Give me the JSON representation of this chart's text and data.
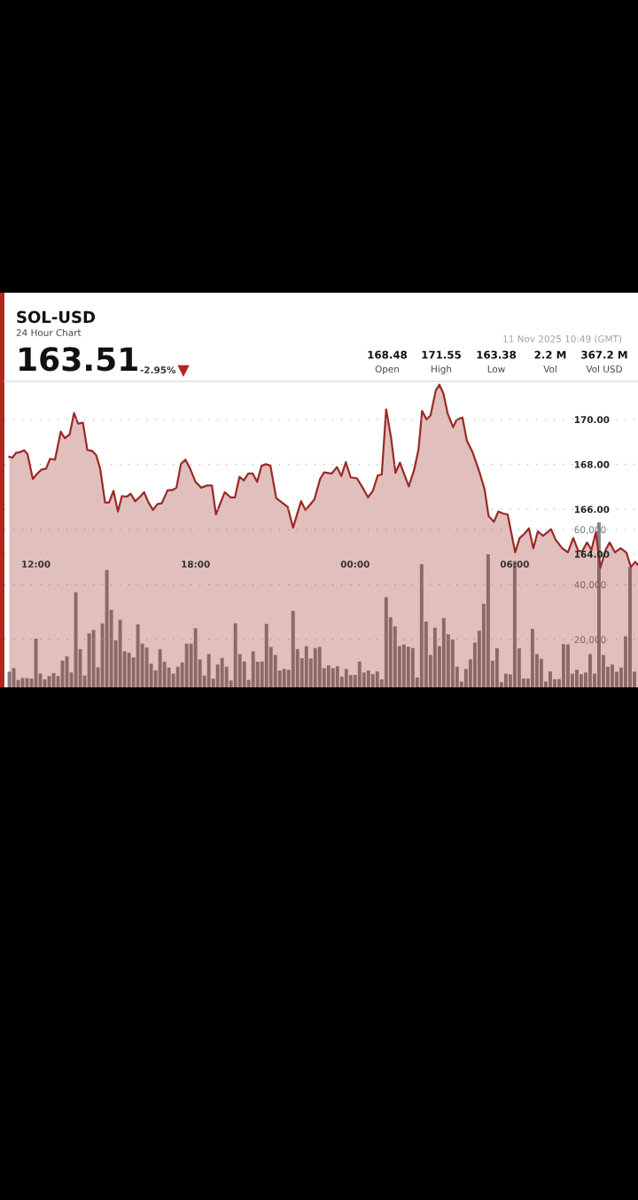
{
  "chart_data": {
    "type": "area",
    "title": "SOL-USD",
    "subtitle": "24 Hour Chart",
    "annotations": [
      "163.51",
      "-2.95%",
      "168.48",
      "Open",
      "171.55",
      "High",
      "163.38",
      "Low",
      "2.2 M",
      "Vol",
      "367.2 M",
      "Vol USD",
      "11 Nov 2025 10:49 (GMT)"
    ],
    "xlim": [
      "2025-11-10T10:49",
      "2025-11-11T10:38"
    ],
    "xticks": [
      {
        "value": "2025-11-10T12:00",
        "label": "12:00"
      },
      {
        "value": "2025-11-10T18:00",
        "label": "18:00"
      },
      {
        "value": "2025-11-11T00:00",
        "label": "00:00"
      },
      {
        "value": "2025-11-11T06:00",
        "label": "06:00"
      }
    ],
    "ylim": [
      158.06,
      171.7
    ],
    "yticks": [
      {
        "value": 164,
        "label": "164.00"
      },
      {
        "value": 166,
        "label": "166.00"
      },
      {
        "value": 168,
        "label": "168.00"
      },
      {
        "value": 170,
        "label": "170.00"
      }
    ],
    "y2lim": [
      2600,
      113900
    ],
    "y2ticks": [
      {
        "value": 20000,
        "label": "20,000"
      },
      {
        "value": 40000,
        "label": "40,000"
      },
      {
        "value": 60000,
        "label": "60,000"
      }
    ],
    "grid": "y",
    "series": [
      {
        "color": "#9b2a26",
        "x": [
          "2025-11-10T11:00",
          "2025-11-10T11:07",
          "2025-11-10T11:15",
          "2025-11-10T11:23",
          "2025-11-10T11:33",
          "2025-11-10T11:41",
          "2025-11-10T11:53",
          "2025-11-10T12:03",
          "2025-11-10T12:13",
          "2025-11-10T12:23",
          "2025-11-10T12:32",
          "2025-11-10T12:43",
          "2025-11-10T12:56",
          "2025-11-10T13:05",
          "2025-11-10T13:16",
          "2025-11-10T13:26",
          "2025-11-10T13:35",
          "2025-11-10T13:46",
          "2025-11-10T13:56",
          "2025-11-10T14:07",
          "2025-11-10T14:16",
          "2025-11-10T14:25",
          "2025-11-10T14:36",
          "2025-11-10T14:45",
          "2025-11-10T14:55",
          "2025-11-10T15:05",
          "2025-11-10T15:14",
          "2025-11-10T15:25",
          "2025-11-10T15:34",
          "2025-11-10T15:44",
          "2025-11-10T15:55",
          "2025-11-10T16:04",
          "2025-11-10T16:14",
          "2025-11-10T16:24",
          "2025-11-10T16:34",
          "2025-11-10T16:44",
          "2025-11-10T16:57",
          "2025-11-10T17:07",
          "2025-11-10T17:17",
          "2025-11-10T17:27",
          "2025-11-10T17:37",
          "2025-11-10T17:47",
          "2025-11-10T18:00",
          "2025-11-10T18:13",
          "2025-11-10T18:26",
          "2025-11-10T18:37",
          "2025-11-10T18:46",
          "2025-11-10T19:06",
          "2025-11-10T19:19",
          "2025-11-10T19:29",
          "2025-11-10T19:39",
          "2025-11-10T19:49",
          "2025-11-10T19:59",
          "2025-11-10T20:09",
          "2025-11-10T20:19",
          "2025-11-10T20:29",
          "2025-11-10T20:39",
          "2025-11-10T20:49",
          "2025-11-10T21:02",
          "2025-11-10T21:15",
          "2025-11-10T21:28",
          "2025-11-10T21:40",
          "2025-11-10T21:58",
          "2025-11-10T22:08",
          "2025-11-10T22:28",
          "2025-11-10T22:41",
          "2025-11-10T22:50",
          "2025-11-10T23:07",
          "2025-11-10T23:19",
          "2025-11-10T23:29",
          "2025-11-10T23:39",
          "2025-11-10T23:50",
          "2025-11-11T00:04",
          "2025-11-11T00:17",
          "2025-11-11T00:29",
          "2025-11-11T00:40",
          "2025-11-11T00:51",
          "2025-11-11T01:00",
          "2025-11-11T01:10",
          "2025-11-11T01:21",
          "2025-11-11T01:31",
          "2025-11-11T01:41",
          "2025-11-11T02:01",
          "2025-11-11T02:13",
          "2025-11-11T02:23",
          "2025-11-11T02:31",
          "2025-11-11T02:41",
          "2025-11-11T02:50",
          "2025-11-11T03:02",
          "2025-11-11T03:10",
          "2025-11-11T03:19",
          "2025-11-11T03:29",
          "2025-11-11T03:41",
          "2025-11-11T03:49",
          "2025-11-11T04:02",
          "2025-11-11T04:12",
          "2025-11-11T04:25",
          "2025-11-11T04:41",
          "2025-11-11T04:52",
          "2025-11-11T05:01",
          "2025-11-11T05:13",
          "2025-11-11T05:23",
          "2025-11-11T05:34",
          "2025-11-11T05:44",
          "2025-11-11T06:01",
          "2025-11-11T06:11",
          "2025-11-11T06:22",
          "2025-11-11T06:32",
          "2025-11-11T06:42",
          "2025-11-11T06:52",
          "2025-11-11T07:04",
          "2025-11-11T07:22",
          "2025-11-11T07:32",
          "2025-11-11T07:47",
          "2025-11-11T08:00",
          "2025-11-11T08:12",
          "2025-11-11T08:23",
          "2025-11-11T08:32",
          "2025-11-11T08:43",
          "2025-11-11T08:53",
          "2025-11-11T09:03",
          "2025-11-11T09:13",
          "2025-11-11T09:25",
          "2025-11-11T09:34",
          "2025-11-11T09:46",
          "2025-11-11T09:59",
          "2025-11-11T10:12",
          "2025-11-11T10:22",
          "2025-11-11T10:32",
          "2025-11-11T10:38"
        ],
        "values": [
          168.34,
          168.3,
          168.51,
          168.54,
          168.63,
          168.47,
          167.35,
          167.59,
          167.77,
          167.81,
          168.25,
          168.21,
          169.46,
          169.17,
          169.33,
          170.29,
          169.82,
          169.86,
          168.64,
          168.6,
          168.41,
          167.81,
          166.3,
          166.3,
          166.82,
          165.9,
          166.59,
          166.56,
          166.69,
          166.36,
          166.56,
          166.76,
          166.3,
          165.97,
          166.23,
          166.27,
          166.85,
          166.85,
          166.96,
          168.01,
          168.21,
          167.85,
          167.22,
          166.96,
          167.06,
          167.06,
          165.77,
          166.76,
          166.53,
          166.53,
          167.44,
          167.29,
          167.59,
          167.59,
          167.22,
          167.94,
          168.01,
          167.94,
          166.5,
          166.3,
          166.1,
          165.18,
          166.36,
          165.97,
          166.43,
          167.35,
          167.64,
          167.59,
          167.88,
          167.48,
          168.1,
          167.42,
          167.38,
          166.96,
          166.53,
          166.82,
          167.51,
          167.55,
          170.45,
          169.2,
          167.62,
          168.08,
          167.02,
          167.75,
          168.67,
          170.38,
          170.01,
          170.18,
          171.3,
          171.55,
          171.17,
          170.25,
          169.66,
          169.99,
          170.09,
          169.06,
          168.54,
          167.62,
          166.89,
          165.7,
          165.44,
          165.9,
          165.81,
          165.77,
          164.08,
          164.72,
          164.91,
          165.15,
          164.26,
          165.01,
          164.82,
          165.11,
          164.65,
          164.26,
          164.08,
          164.72,
          164.15,
          164.12,
          164.52,
          164.19,
          164.98,
          163.38,
          164.19,
          164.52,
          164.08,
          164.26,
          164.06,
          163.43,
          163.66,
          163.51
        ]
      },
      {
        "type": "bar",
        "axis": "y2",
        "color": "#6e6e6e",
        "x": [
          "2025-11-10T11:00",
          "2025-11-10T11:10",
          "2025-11-10T11:20",
          "2025-11-10T11:30",
          "2025-11-10T11:40",
          "2025-11-10T11:50",
          "2025-11-10T12:00",
          "2025-11-10T12:10",
          "2025-11-10T12:20",
          "2025-11-10T12:30",
          "2025-11-10T12:40",
          "2025-11-10T12:50",
          "2025-11-10T13:00",
          "2025-11-10T13:10",
          "2025-11-10T13:20",
          "2025-11-10T13:30",
          "2025-11-10T13:40",
          "2025-11-10T13:50",
          "2025-11-10T14:00",
          "2025-11-10T14:10",
          "2025-11-10T14:20",
          "2025-11-10T14:30",
          "2025-11-10T14:40",
          "2025-11-10T14:50",
          "2025-11-10T15:00",
          "2025-11-10T15:10",
          "2025-11-10T15:20",
          "2025-11-10T15:30",
          "2025-11-10T15:40",
          "2025-11-10T15:50",
          "2025-11-10T16:00",
          "2025-11-10T16:10",
          "2025-11-10T16:20",
          "2025-11-10T16:30",
          "2025-11-10T16:40",
          "2025-11-10T16:50",
          "2025-11-10T17:00",
          "2025-11-10T17:10",
          "2025-11-10T17:20",
          "2025-11-10T17:30",
          "2025-11-10T17:40",
          "2025-11-10T17:50",
          "2025-11-10T18:00",
          "2025-11-10T18:10",
          "2025-11-10T18:20",
          "2025-11-10T18:30",
          "2025-11-10T18:40",
          "2025-11-10T18:50",
          "2025-11-10T19:00",
          "2025-11-10T19:10",
          "2025-11-10T19:20",
          "2025-11-10T19:30",
          "2025-11-10T19:40",
          "2025-11-10T19:50",
          "2025-11-10T20:00",
          "2025-11-10T20:10",
          "2025-11-10T20:20",
          "2025-11-10T20:30",
          "2025-11-10T20:40",
          "2025-11-10T20:50",
          "2025-11-10T21:00",
          "2025-11-10T21:10",
          "2025-11-10T21:20",
          "2025-11-10T21:30",
          "2025-11-10T21:40",
          "2025-11-10T21:50",
          "2025-11-10T22:00",
          "2025-11-10T22:10",
          "2025-11-10T22:20",
          "2025-11-10T22:30",
          "2025-11-10T22:40",
          "2025-11-10T22:50",
          "2025-11-10T23:00",
          "2025-11-10T23:10",
          "2025-11-10T23:20",
          "2025-11-10T23:30",
          "2025-11-10T23:40",
          "2025-11-10T23:50",
          "2025-11-11T00:00",
          "2025-11-11T00:10",
          "2025-11-11T00:20",
          "2025-11-11T00:30",
          "2025-11-11T00:40",
          "2025-11-11T00:50",
          "2025-11-11T01:00",
          "2025-11-11T01:10",
          "2025-11-11T01:20",
          "2025-11-11T01:30",
          "2025-11-11T01:40",
          "2025-11-11T01:50",
          "2025-11-11T02:00",
          "2025-11-11T02:10",
          "2025-11-11T02:20",
          "2025-11-11T02:30",
          "2025-11-11T02:40",
          "2025-11-11T02:50",
          "2025-11-11T03:00",
          "2025-11-11T03:10",
          "2025-11-11T03:20",
          "2025-11-11T03:30",
          "2025-11-11T03:40",
          "2025-11-11T03:50",
          "2025-11-11T04:00",
          "2025-11-11T04:10",
          "2025-11-11T04:20",
          "2025-11-11T04:30",
          "2025-11-11T04:40",
          "2025-11-11T04:50",
          "2025-11-11T05:00",
          "2025-11-11T05:10",
          "2025-11-11T05:20",
          "2025-11-11T05:30",
          "2025-11-11T05:40",
          "2025-11-11T05:50",
          "2025-11-11T06:00",
          "2025-11-11T06:10",
          "2025-11-11T06:20",
          "2025-11-11T06:30",
          "2025-11-11T06:40",
          "2025-11-11T06:50",
          "2025-11-11T07:00",
          "2025-11-11T07:10",
          "2025-11-11T07:20",
          "2025-11-11T07:30",
          "2025-11-11T07:40",
          "2025-11-11T07:50",
          "2025-11-11T08:00",
          "2025-11-11T08:10",
          "2025-11-11T08:20",
          "2025-11-11T08:30",
          "2025-11-11T08:40",
          "2025-11-11T08:50",
          "2025-11-11T09:00",
          "2025-11-11T09:10",
          "2025-11-11T09:20",
          "2025-11-11T09:30",
          "2025-11-11T09:40",
          "2025-11-11T09:50",
          "2025-11-11T10:00",
          "2025-11-11T10:10",
          "2025-11-11T10:20",
          "2025-11-11T10:30"
        ],
        "values": [
          8300,
          9600,
          5300,
          6000,
          6000,
          5800,
          20300,
          7600,
          5500,
          6700,
          7800,
          6700,
          12300,
          13900,
          8000,
          37200,
          16500,
          6900,
          22200,
          23500,
          9900,
          25900,
          45300,
          30800,
          19700,
          27200,
          15700,
          15200,
          13500,
          25500,
          18500,
          17100,
          11200,
          8800,
          16500,
          11900,
          9800,
          7600,
          10100,
          11700,
          18500,
          18500,
          24100,
          12800,
          6900,
          14700,
          5800,
          10900,
          13300,
          10100,
          5100,
          25900,
          14700,
          12000,
          5300,
          15700,
          11900,
          12000,
          25700,
          17300,
          14400,
          8700,
          9300,
          9000,
          30400,
          16500,
          13200,
          17600,
          13100,
          16900,
          17300,
          9600,
          10600,
          9600,
          10300,
          6500,
          9300,
          7100,
          7100,
          12000,
          8000,
          8700,
          7400,
          8400,
          5500,
          35400,
          28100,
          24800,
          17600,
          18200,
          17400,
          16900,
          6200,
          47400,
          26500,
          14400,
          24300,
          17600,
          27800,
          21900,
          20000,
          10100,
          4700,
          9300,
          12800,
          18900,
          23200,
          33000,
          51000,
          12300,
          16800,
          4500,
          7600,
          7300,
          48600,
          16800,
          5800,
          5800,
          23900,
          14700,
          13000,
          4700,
          8400,
          5500,
          5600,
          18300,
          18200,
          7600,
          9000,
          7400,
          8000,
          14700,
          7600,
          62600,
          14400,
          10100,
          10900,
          8300,
          9800,
          21200,
          46400,
          8300
        ]
      }
    ]
  }
}
